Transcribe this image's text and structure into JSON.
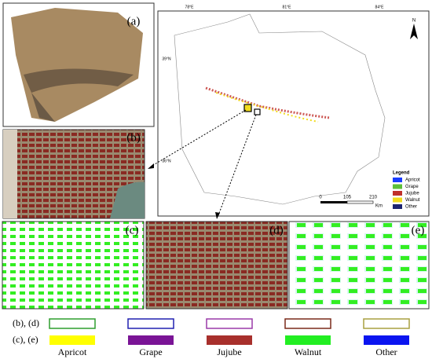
{
  "panels": [
    "(a)",
    "(b)",
    "(c)",
    "(d)",
    "(e)"
  ],
  "map": {
    "lon_labels": [
      "78°E",
      "81°E",
      "84°E"
    ],
    "lat_labels": [
      "39°N",
      "36°N"
    ],
    "north": "N",
    "legend": {
      "title": "Legend",
      "items": [
        {
          "name": "Apricot",
          "color": "#1a3cff"
        },
        {
          "name": "Grape",
          "color": "#5cbf3a"
        },
        {
          "name": "Jujube",
          "color": "#c0302a"
        },
        {
          "name": "Walnut",
          "color": "#f2dc1e"
        },
        {
          "name": "Other",
          "color": "#1c2470"
        }
      ]
    },
    "scale": {
      "labels": [
        "0",
        "105",
        "210"
      ],
      "unit": "Km"
    }
  },
  "key": {
    "rows": [
      "(b), (d)",
      "(c), (e)"
    ],
    "classes": [
      {
        "name": "Apricot",
        "outline": "#2e9e2e",
        "fill": "#ffff00"
      },
      {
        "name": "Grape",
        "outline": "#2020b0",
        "fill": "#7a1496"
      },
      {
        "name": "Jujube",
        "outline": "#9a3aa8",
        "fill": "#a8302c"
      },
      {
        "name": "Walnut",
        "outline": "#7a2a1a",
        "fill": "#22ee22"
      },
      {
        "name": "Other",
        "outline": "#a8a040",
        "fill": "#0a14f0"
      }
    ]
  }
}
